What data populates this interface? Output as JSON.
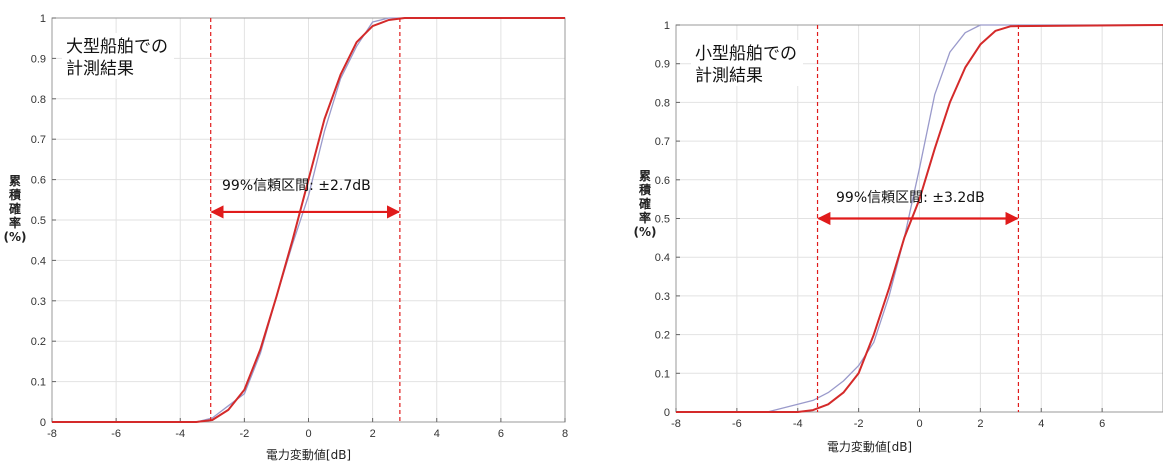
{
  "chart_data": [
    {
      "type": "line",
      "xlabel": "電力変動値[dB]",
      "ylabel_chars": [
        "累",
        "積",
        "確",
        "率",
        "(%)"
      ],
      "xlim": [
        -8,
        8
      ],
      "ylim": [
        0,
        1
      ],
      "xticks": [
        -8,
        -6,
        -4,
        -2,
        0,
        2,
        4,
        6,
        8
      ],
      "yticks": [
        0,
        0.1,
        0.2,
        0.3,
        0.4,
        0.5,
        0.6,
        0.7,
        0.8,
        0.9,
        1
      ],
      "grid": true,
      "annotation_lines": [
        "大型船舶での",
        "計測結果"
      ],
      "ci_label": "99%信頼区間: ±2.7dB",
      "ci_bounds": [
        -3.05,
        2.85
      ],
      "ci_arrow_y": 0.52,
      "series": [
        {
          "color": "#9a9acb",
          "x": [
            -8,
            -3.5,
            -3.0,
            -2.5,
            -2.0,
            -1.5,
            -1.0,
            -0.5,
            0,
            0.5,
            1.0,
            1.5,
            2.0,
            2.5,
            3.0,
            8
          ],
          "y": [
            0,
            0,
            0.01,
            0.04,
            0.07,
            0.17,
            0.31,
            0.44,
            0.56,
            0.72,
            0.85,
            0.93,
            0.99,
            1.0,
            1.0,
            1.0
          ]
        },
        {
          "color": "#d42a2a",
          "x": [
            -8,
            -3.5,
            -3.0,
            -2.5,
            -2.0,
            -1.5,
            -1.0,
            -0.5,
            0,
            0.5,
            1.0,
            1.5,
            2.0,
            2.5,
            3.0,
            8
          ],
          "y": [
            0,
            0,
            0.005,
            0.03,
            0.08,
            0.18,
            0.31,
            0.45,
            0.6,
            0.75,
            0.86,
            0.94,
            0.98,
            0.995,
            1.0,
            1.0
          ]
        }
      ]
    },
    {
      "type": "line",
      "xlabel": "電力変動値[dB]",
      "ylabel_chars": [
        "累",
        "積",
        "確",
        "率",
        "(%)"
      ],
      "xlim": [
        -8,
        8
      ],
      "ylim": [
        0,
        1
      ],
      "xticks": [
        -8,
        -6,
        -4,
        -2,
        0,
        2,
        4,
        6
      ],
      "yticks": [
        0,
        0.1,
        0.2,
        0.3,
        0.4,
        0.5,
        0.6,
        0.7,
        0.8,
        0.9,
        1
      ],
      "grid": true,
      "annotation_lines": [
        "小型船舶での",
        "計測結果"
      ],
      "ci_label": "99%信頼区間: ±3.2dB",
      "ci_bounds": [
        -3.35,
        3.25
      ],
      "ci_arrow_y": 0.5,
      "series": [
        {
          "color": "#9a9acb",
          "x": [
            -8,
            -5,
            -4,
            -3.5,
            -3,
            -2.5,
            -2,
            -1.5,
            -1,
            -0.5,
            0,
            0.5,
            1,
            1.5,
            2,
            2.5,
            8
          ],
          "y": [
            0,
            0,
            0.02,
            0.03,
            0.05,
            0.08,
            0.12,
            0.18,
            0.3,
            0.45,
            0.63,
            0.82,
            0.93,
            0.98,
            1.0,
            1.0,
            1.0
          ]
        },
        {
          "color": "#d42a2a",
          "x": [
            -8,
            -4,
            -3.5,
            -3,
            -2.5,
            -2,
            -1.5,
            -1,
            -0.5,
            0,
            0.5,
            1,
            1.5,
            2,
            2.5,
            3,
            8
          ],
          "y": [
            0,
            0,
            0.005,
            0.02,
            0.05,
            0.1,
            0.2,
            0.32,
            0.45,
            0.55,
            0.68,
            0.8,
            0.89,
            0.95,
            0.985,
            0.997,
            1.0
          ]
        }
      ]
    }
  ]
}
